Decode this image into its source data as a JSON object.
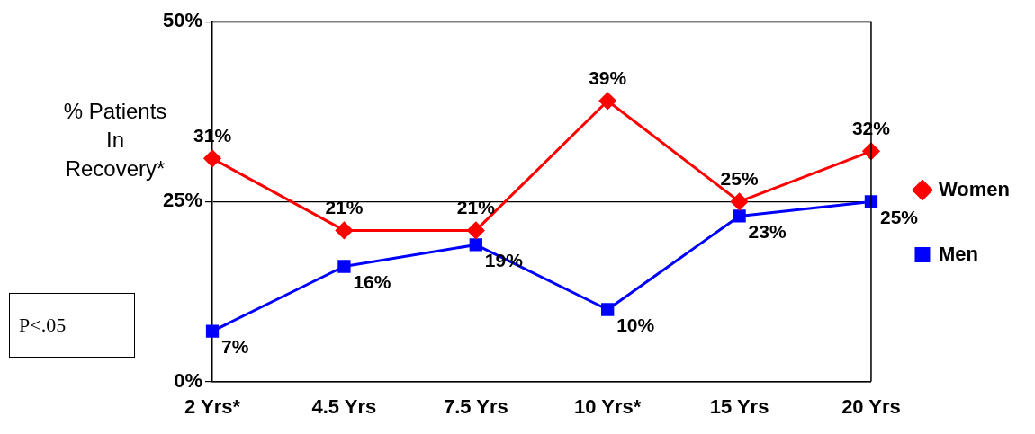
{
  "chart_data": {
    "type": "line",
    "ylabel": "% Patients In Recovery*",
    "categories": [
      "2 Yrs*",
      "4.5 Yrs",
      "7.5 Yrs",
      "10 Yrs*",
      "15 Yrs",
      "20 Yrs"
    ],
    "series": [
      {
        "name": "Women",
        "color": "#ff0000",
        "marker": "diamond",
        "values": [
          31,
          21,
          21,
          39,
          25,
          32
        ],
        "value_labels": [
          "31%",
          "21%",
          "21%",
          "39%",
          "25%",
          "32%"
        ]
      },
      {
        "name": "Men",
        "color": "#0000ff",
        "marker": "square",
        "values": [
          7,
          16,
          19,
          10,
          23,
          25
        ],
        "value_labels": [
          "7%",
          "16%",
          "19%",
          "10%",
          "23%",
          "25%"
        ]
      }
    ],
    "ylim": [
      0,
      50
    ],
    "yticks": [
      {
        "value": 0,
        "label": "0%"
      },
      {
        "value": 25,
        "label": "25%"
      },
      {
        "value": 50,
        "label": "50%"
      }
    ],
    "grid": "y",
    "legend": "right",
    "line_style": "solid",
    "annotations": [
      "P<.05"
    ]
  }
}
